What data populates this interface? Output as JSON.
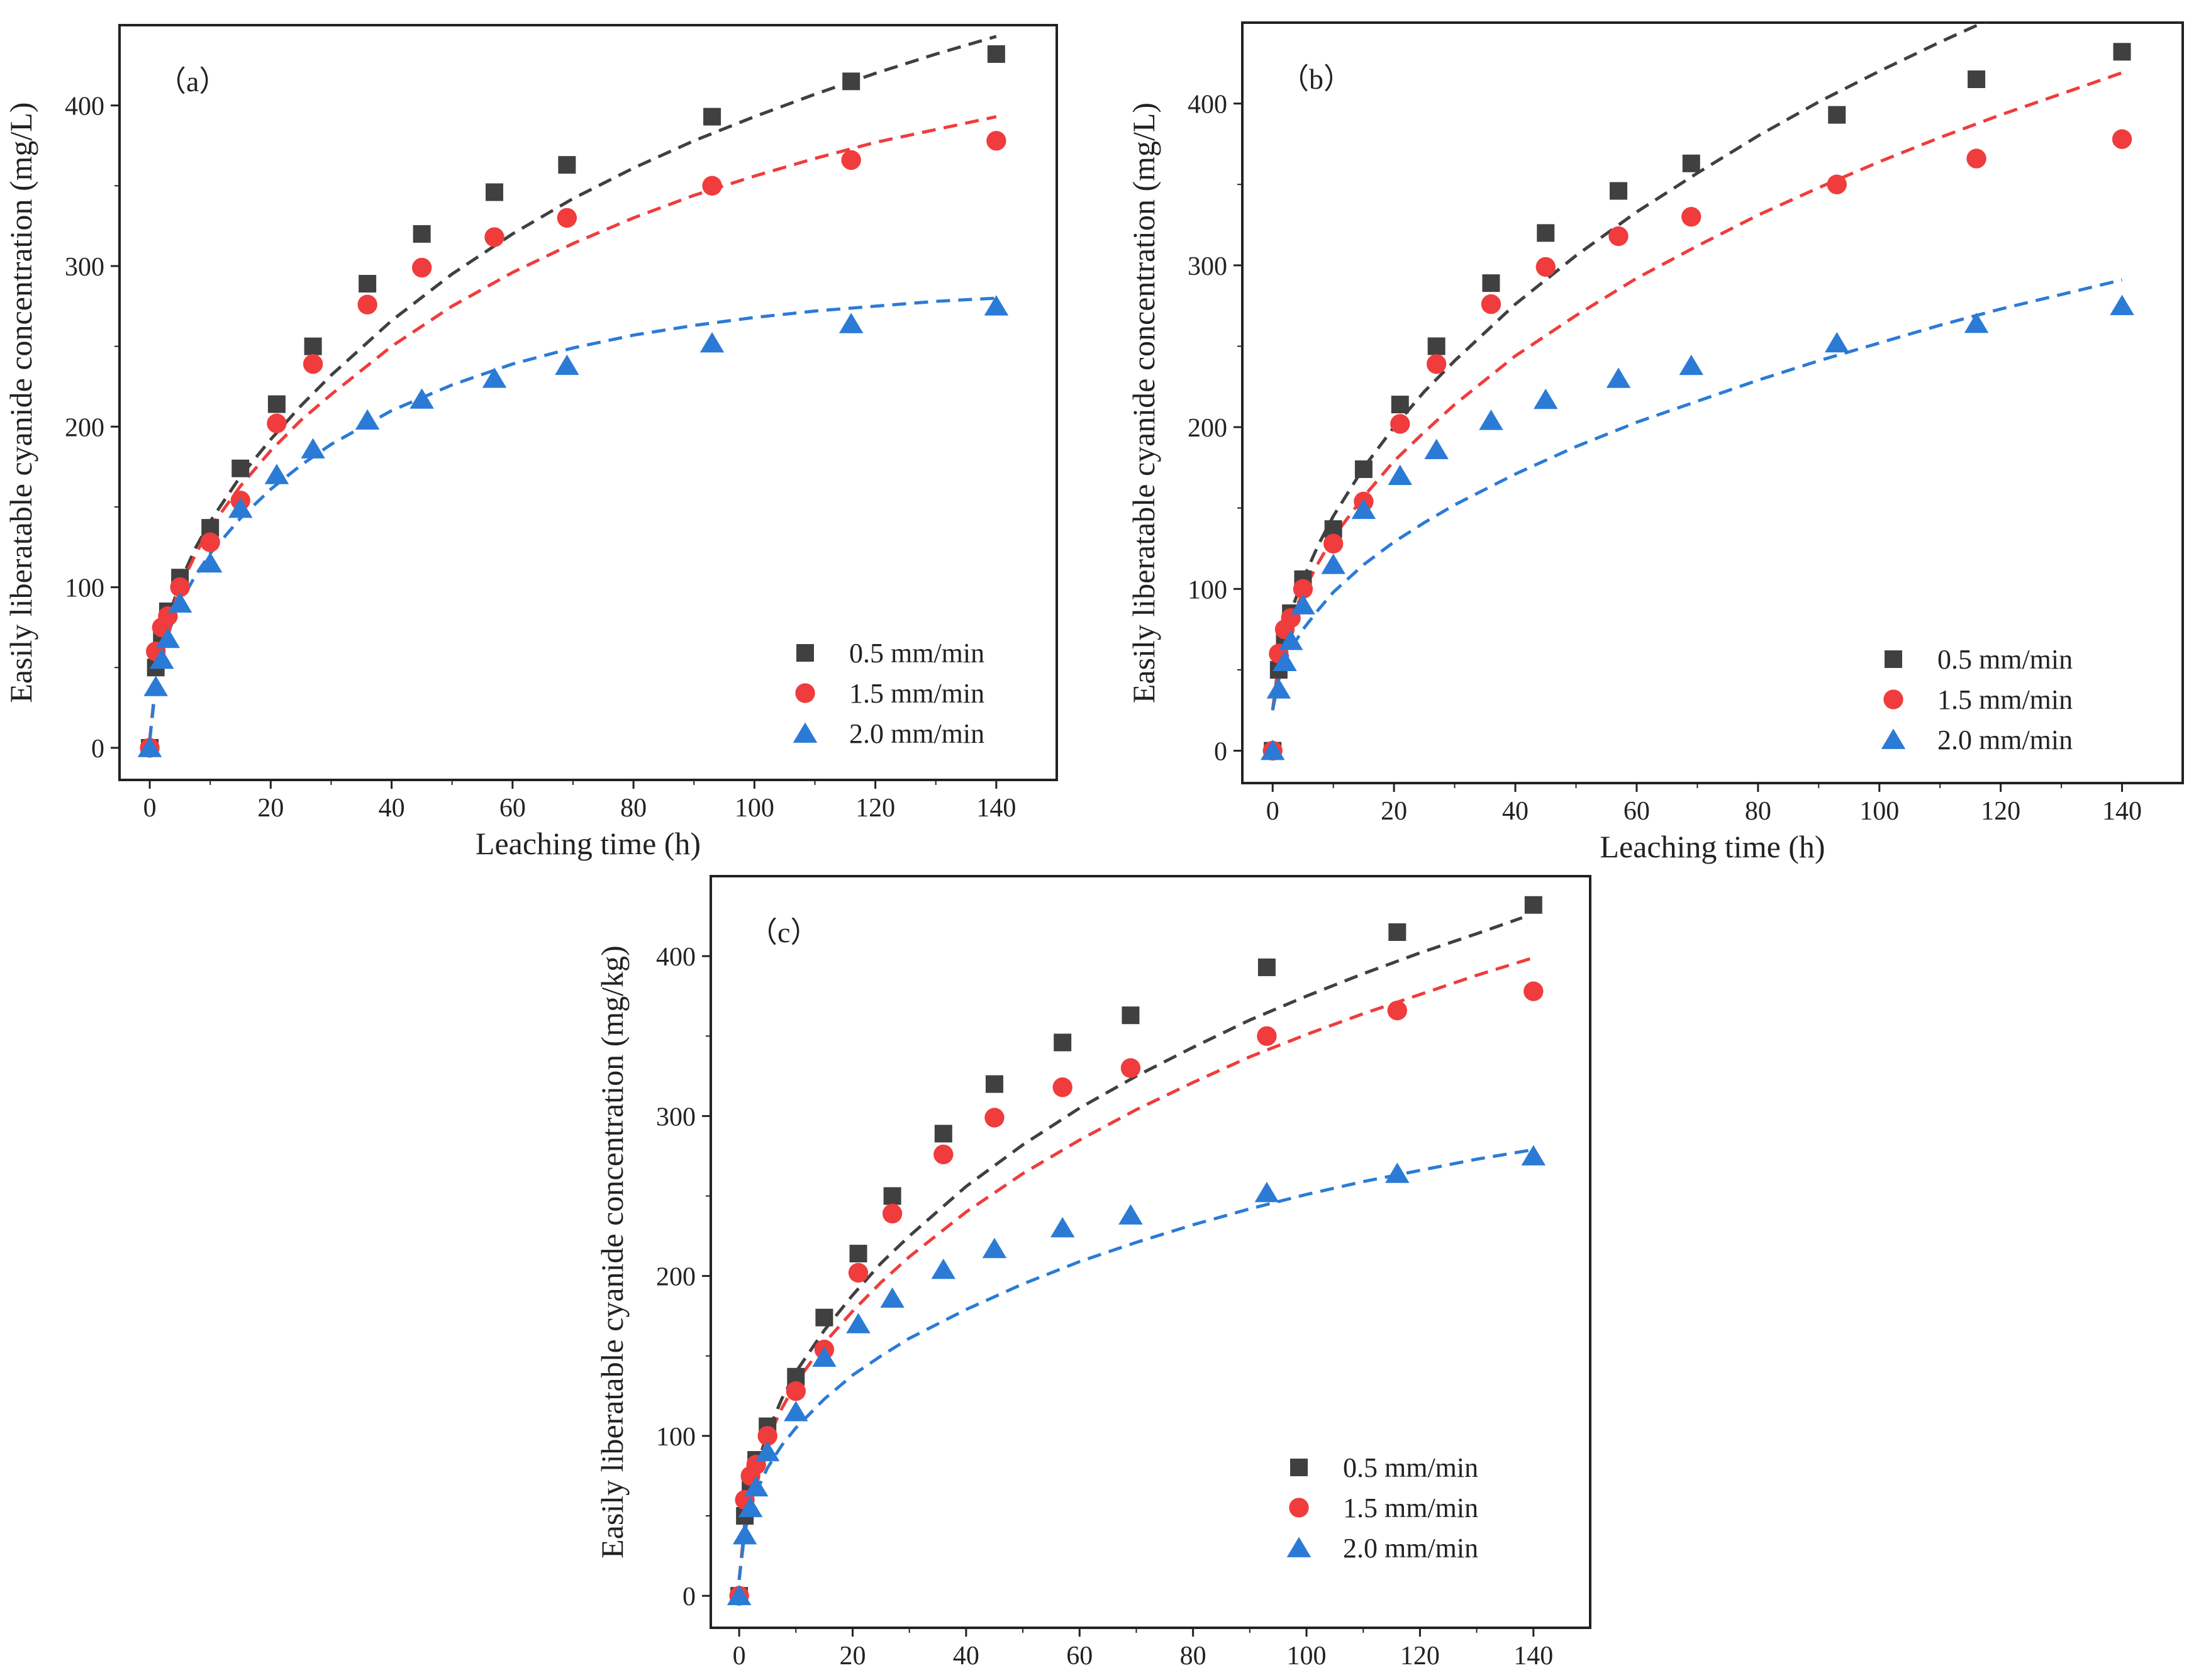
{
  "colors": {
    "black": "#404040",
    "red": "#f03c3c",
    "blue": "#2b7bd6"
  },
  "chart_data": [
    {
      "type": "scatter",
      "panel_label": "（a）",
      "xlabel": "Leaching time (h)",
      "ylabel": "Easily liberatable cyanide concentration (mg/L)",
      "xlim": [
        -5,
        150
      ],
      "ylim": [
        -20,
        450
      ],
      "xticks": [
        0,
        20,
        40,
        60,
        80,
        100,
        120,
        140
      ],
      "yticks": [
        0,
        100,
        200,
        300,
        400
      ],
      "legend_position": "bottom-right",
      "series": [
        {
          "name": "0.5 mm/min",
          "marker": "square",
          "color": "#404040",
          "x": [
            0,
            1,
            2,
            3,
            5,
            10,
            15,
            21,
            27,
            36,
            45,
            57,
            69,
            93,
            116,
            140
          ],
          "y": [
            0,
            50,
            70,
            85,
            106,
            137,
            174,
            214,
            250,
            289,
            320,
            346,
            363,
            393,
            415,
            432
          ],
          "fit_x": [
            0,
            1,
            2,
            3,
            5,
            7.5,
            10,
            15,
            20,
            25,
            30,
            40,
            50,
            60,
            70,
            80,
            90,
            100,
            110,
            120,
            130,
            140
          ],
          "fit_y": [
            5,
            42,
            64,
            80,
            103,
            124,
            141,
            169,
            192,
            213,
            232,
            266,
            295,
            320,
            342,
            361,
            378,
            393,
            407,
            420,
            432,
            443
          ]
        },
        {
          "name": "1.5 mm/min",
          "marker": "circle",
          "color": "#f03c3c",
          "x": [
            0,
            1,
            2,
            3,
            5,
            10,
            15,
            21,
            27,
            36,
            45,
            57,
            69,
            93,
            116,
            140
          ],
          "y": [
            0,
            60,
            75,
            82,
            100,
            128,
            154,
            202,
            239,
            276,
            299,
            318,
            330,
            350,
            366,
            378
          ],
          "fit_x": [
            0,
            1,
            2,
            3,
            5,
            7.5,
            10,
            15,
            20,
            25,
            30,
            40,
            50,
            60,
            70,
            80,
            90,
            100,
            110,
            120,
            130,
            140
          ],
          "fit_y": [
            5,
            42,
            63,
            78,
            100,
            120,
            137,
            163,
            185,
            204,
            220,
            250,
            275,
            296,
            314,
            330,
            344,
            356,
            367,
            377,
            385,
            393
          ]
        },
        {
          "name": "2.0 mm/min",
          "marker": "triangle",
          "color": "#2b7bd6",
          "x": [
            0,
            1,
            2,
            3,
            5,
            10,
            15,
            21,
            27,
            36,
            45,
            57,
            69,
            93,
            116,
            140
          ],
          "y": [
            0,
            38,
            55,
            68,
            90,
            115,
            149,
            170,
            186,
            204,
            217,
            230,
            238,
            252,
            264,
            275
          ],
          "fit_x": [
            0,
            1,
            2,
            3,
            5,
            7.5,
            10,
            15,
            20,
            25,
            30,
            40,
            50,
            60,
            70,
            80,
            90,
            100,
            110,
            120,
            130,
            140
          ],
          "fit_y": [
            5,
            39,
            58,
            71,
            90,
            107,
            121,
            143,
            161,
            176,
            189,
            210,
            226,
            239,
            249,
            257,
            263,
            268,
            272,
            275,
            278,
            280
          ]
        }
      ]
    },
    {
      "type": "scatter",
      "panel_label": "（b）",
      "xlabel": "Leaching time (h)",
      "ylabel": "Easily liberatable cyanide concentration (mg/L)",
      "xlim": [
        -5,
        150
      ],
      "ylim": [
        -20,
        450
      ],
      "xticks": [
        0,
        20,
        40,
        60,
        80,
        100,
        120,
        140
      ],
      "yticks": [
        0,
        100,
        200,
        300,
        400
      ],
      "legend_position": "bottom-right",
      "series": [
        {
          "name": "0.5 mm/min",
          "marker": "square",
          "color": "#404040",
          "x": [
            0,
            1,
            2,
            3,
            5,
            10,
            15,
            21,
            27,
            36,
            45,
            57,
            69,
            93,
            116,
            140
          ],
          "y": [
            0,
            50,
            70,
            85,
            106,
            137,
            174,
            214,
            250,
            289,
            320,
            346,
            363,
            393,
            415,
            432
          ],
          "fit_x": [
            0,
            1,
            2,
            3,
            5,
            7.5,
            10,
            15,
            20,
            25,
            30,
            40,
            50,
            60,
            70,
            80,
            90,
            100,
            110,
            120,
            127
          ],
          "fit_y": [
            25,
            55,
            72,
            86,
            106,
            127,
            145,
            175,
            200,
            222,
            241,
            276,
            306,
            333,
            357,
            380,
            401,
            420,
            438,
            455,
            466
          ]
        },
        {
          "name": "1.5 mm/min",
          "marker": "circle",
          "color": "#f03c3c",
          "x": [
            0,
            1,
            2,
            3,
            5,
            10,
            15,
            21,
            27,
            36,
            45,
            57,
            69,
            93,
            116,
            140
          ],
          "y": [
            0,
            60,
            75,
            82,
            100,
            128,
            154,
            202,
            239,
            276,
            299,
            318,
            330,
            350,
            366,
            378
          ],
          "fit_x": [
            0,
            1,
            2,
            3,
            5,
            7.5,
            10,
            15,
            20,
            25,
            30,
            40,
            50,
            60,
            70,
            80,
            90,
            100,
            110,
            120,
            130,
            140
          ],
          "fit_y": [
            25,
            53,
            69,
            81,
            98,
            116,
            132,
            157,
            179,
            197,
            214,
            244,
            269,
            292,
            312,
            331,
            348,
            364,
            379,
            393,
            406,
            419
          ]
        },
        {
          "name": "2.0 mm/min",
          "marker": "triangle",
          "color": "#2b7bd6",
          "x": [
            0,
            1,
            2,
            3,
            5,
            10,
            15,
            21,
            27,
            36,
            45,
            57,
            69,
            93,
            116,
            140
          ],
          "y": [
            0,
            38,
            55,
            68,
            90,
            115,
            149,
            170,
            186,
            204,
            217,
            230,
            238,
            252,
            264,
            275
          ],
          "fit_x": [
            0,
            1,
            2,
            3,
            5,
            7.5,
            10,
            15,
            20,
            25,
            30,
            40,
            50,
            60,
            70,
            80,
            90,
            100,
            110,
            120,
            130,
            140
          ],
          "fit_y": [
            25,
            44,
            55,
            63,
            75,
            87,
            98,
            115,
            129,
            141,
            152,
            171,
            188,
            203,
            216,
            229,
            241,
            252,
            263,
            273,
            282,
            291
          ]
        }
      ]
    },
    {
      "type": "scatter",
      "panel_label": "（c）",
      "xlabel": "Leaching time (h)",
      "ylabel": "Easily liberatable  cyanide concentration (mg/kg)",
      "xlim": [
        -5,
        150
      ],
      "ylim": [
        -20,
        450
      ],
      "xticks": [
        0,
        20,
        40,
        60,
        80,
        100,
        120,
        140
      ],
      "yticks": [
        0,
        100,
        200,
        300,
        400
      ],
      "legend_position": "bottom-right",
      "series": [
        {
          "name": "0.5 mm/min",
          "marker": "square",
          "color": "#404040",
          "x": [
            0,
            1,
            2,
            3,
            5,
            10,
            15,
            21,
            27,
            36,
            45,
            57,
            69,
            93,
            116,
            140
          ],
          "y": [
            0,
            50,
            70,
            85,
            106,
            137,
            174,
            214,
            250,
            289,
            320,
            346,
            363,
            393,
            415,
            432
          ],
          "fit_x": [
            0,
            1,
            2,
            3,
            5,
            7.5,
            10,
            15,
            20,
            25,
            30,
            40,
            50,
            60,
            70,
            80,
            90,
            100,
            110,
            120,
            130,
            138
          ],
          "fit_y": [
            10,
            45,
            66,
            80,
            102,
            123,
            140,
            166,
            188,
            208,
            225,
            256,
            282,
            305,
            325,
            343,
            360,
            375,
            389,
            402,
            414,
            424
          ]
        },
        {
          "name": "1.5 mm/min",
          "marker": "circle",
          "color": "#f03c3c",
          "x": [
            0,
            1,
            2,
            3,
            5,
            10,
            15,
            21,
            27,
            36,
            45,
            57,
            69,
            93,
            116,
            140
          ],
          "y": [
            0,
            60,
            75,
            82,
            100,
            128,
            154,
            202,
            239,
            276,
            299,
            318,
            330,
            350,
            366,
            378
          ],
          "fit_x": [
            0,
            1,
            2,
            3,
            5,
            7.5,
            10,
            15,
            20,
            25,
            30,
            40,
            50,
            60,
            70,
            80,
            90,
            100,
            110,
            120,
            130,
            140
          ],
          "fit_y": [
            10,
            45,
            65,
            78,
            98,
            117,
            133,
            158,
            178,
            196,
            212,
            240,
            264,
            285,
            304,
            321,
            337,
            351,
            364,
            376,
            388,
            399
          ]
        },
        {
          "name": "2.0 mm/min",
          "marker": "triangle",
          "color": "#2b7bd6",
          "x": [
            0,
            1,
            2,
            3,
            5,
            10,
            15,
            21,
            27,
            36,
            45,
            57,
            69,
            93,
            116,
            140
          ],
          "y": [
            0,
            38,
            55,
            68,
            90,
            115,
            149,
            170,
            186,
            204,
            217,
            230,
            238,
            252,
            264,
            275
          ],
          "fit_x": [
            0,
            1,
            2,
            3,
            5,
            7.5,
            10,
            15,
            20,
            25,
            30,
            40,
            50,
            60,
            70,
            80,
            90,
            100,
            110,
            120,
            130,
            140
          ],
          "fit_y": [
            10,
            40,
            55,
            65,
            80,
            94,
            105,
            123,
            138,
            150,
            161,
            179,
            195,
            209,
            221,
            232,
            242,
            251,
            259,
            266,
            273,
            279
          ]
        }
      ]
    }
  ]
}
